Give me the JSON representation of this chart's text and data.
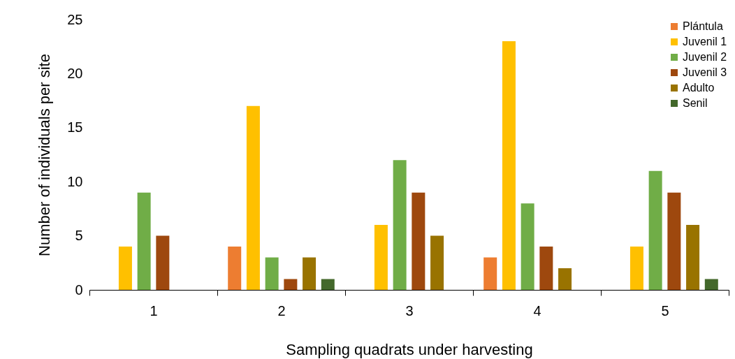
{
  "chart_data": {
    "type": "bar",
    "xlabel": "Sampling quadrats under harvesting",
    "ylabel": "Number of individuals per site",
    "categories": [
      "1",
      "2",
      "3",
      "4",
      "5"
    ],
    "ylim": [
      0,
      25
    ],
    "yticks": [
      0,
      5,
      10,
      15,
      20,
      25
    ],
    "grid": false,
    "legend": "top right",
    "series": [
      {
        "name": "Plántula",
        "color": "#ed7d31",
        "values": [
          0,
          4,
          0,
          3,
          0
        ]
      },
      {
        "name": "Juvenil 1",
        "color": "#ffc000",
        "values": [
          4,
          17,
          6,
          23,
          4
        ]
      },
      {
        "name": "Juvenil 2",
        "color": "#70ad47",
        "values": [
          9,
          3,
          12,
          8,
          11
        ]
      },
      {
        "name": "Juvenil 3",
        "color": "#9e480e",
        "values": [
          5,
          1,
          9,
          4,
          9
        ]
      },
      {
        "name": "Adulto",
        "color": "#997300",
        "values": [
          0,
          3,
          5,
          2,
          6
        ]
      },
      {
        "name": "Senil",
        "color": "#43682b",
        "values": [
          0,
          1,
          0,
          0,
          1
        ]
      }
    ]
  }
}
